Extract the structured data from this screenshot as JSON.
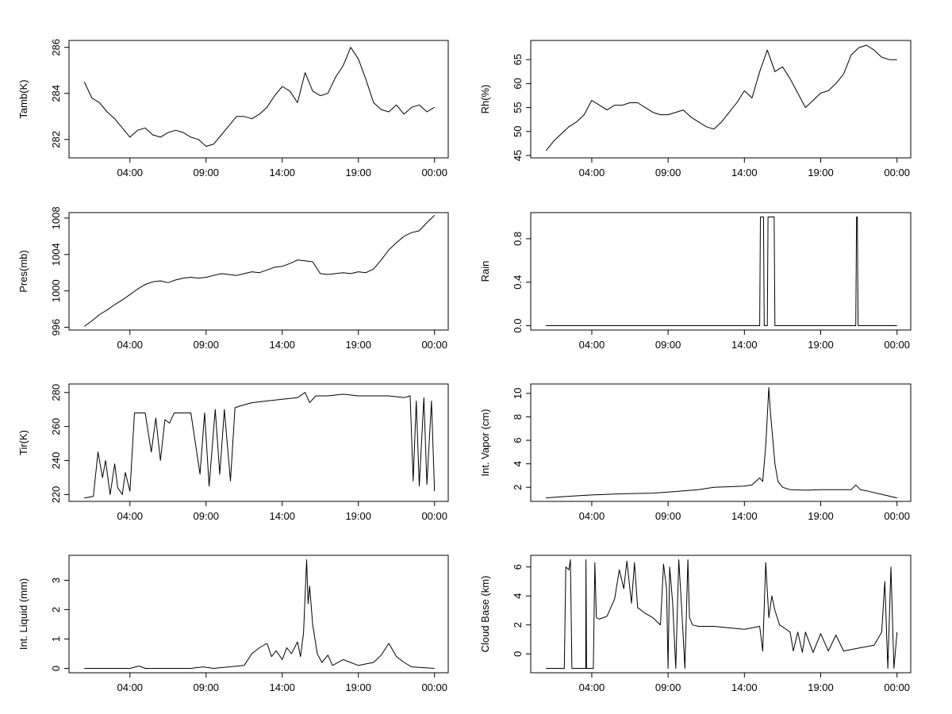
{
  "chart_data": [
    {
      "type": "line",
      "ylabel": "Tamb(K)",
      "x_ticks": [
        "04:00",
        "09:00",
        "14:00",
        "19:00",
        "00:00"
      ],
      "y_ticks": [
        282,
        284,
        286
      ],
      "ylim": [
        281.2,
        286.3
      ],
      "line_color": "#000000",
      "series": [
        {
          "x": [
            1,
            1.5,
            2,
            2.5,
            3,
            3.5,
            4,
            4.5,
            5,
            5.5,
            6,
            6.5,
            7,
            7.5,
            8,
            8.5,
            9,
            9.5,
            10,
            10.5,
            11,
            11.5,
            12,
            12.5,
            13,
            13.5,
            14,
            14.5,
            15,
            15.5,
            16,
            16.5,
            17,
            17.5,
            18,
            18.5,
            19,
            19.5,
            20,
            20.5,
            21,
            21.5,
            22,
            22.5,
            23,
            23.5,
            24
          ],
          "values": [
            284.5,
            283.8,
            283.6,
            283.2,
            282.9,
            282.5,
            282.1,
            282.4,
            282.5,
            282.2,
            282.1,
            282.3,
            282.4,
            282.3,
            282.1,
            282.0,
            281.7,
            281.8,
            282.2,
            282.6,
            283.0,
            283.0,
            282.9,
            283.1,
            283.4,
            283.9,
            284.3,
            284.1,
            283.6,
            284.9,
            284.1,
            283.9,
            284.0,
            284.7,
            285.2,
            286.0,
            285.5,
            284.6,
            283.6,
            283.3,
            283.2,
            283.5,
            283.1,
            283.4,
            283.5,
            283.2,
            283.4
          ]
        }
      ]
    },
    {
      "type": "line",
      "ylabel": "Rh(%)",
      "x_ticks": [
        "04:00",
        "09:00",
        "14:00",
        "19:00",
        "00:00"
      ],
      "y_ticks": [
        45,
        50,
        55,
        60,
        65
      ],
      "ylim": [
        44.5,
        69
      ],
      "line_color": "#000000",
      "series": [
        {
          "x": [
            1,
            1.5,
            2,
            2.5,
            3,
            3.5,
            4,
            4.5,
            5,
            5.5,
            6,
            6.5,
            7,
            7.5,
            8,
            8.5,
            9,
            9.5,
            10,
            10.5,
            11,
            11.5,
            12,
            12.5,
            13,
            13.5,
            14,
            14.5,
            15,
            15.5,
            16,
            16.5,
            17,
            17.5,
            18,
            18.5,
            19,
            19.5,
            20,
            20.5,
            21,
            21.5,
            22,
            22.5,
            23,
            23.5,
            24
          ],
          "values": [
            46,
            48,
            49.5,
            51,
            52,
            53.5,
            56.5,
            55.5,
            54.5,
            55.5,
            55.5,
            56,
            56,
            55,
            54,
            53.5,
            53.5,
            54,
            54.5,
            53,
            52,
            51,
            50.5,
            52,
            54,
            56,
            58.5,
            57,
            62.5,
            67,
            62.5,
            63.5,
            61,
            58,
            55,
            56.5,
            58,
            58.5,
            60,
            62,
            66,
            67.5,
            68,
            67,
            65.5,
            65,
            65
          ]
        }
      ]
    },
    {
      "type": "line",
      "ylabel": "Pres(mb)",
      "x_ticks": [
        "04:00",
        "09:00",
        "14:00",
        "19:00",
        "00:00"
      ],
      "y_ticks": [
        996,
        1000,
        1004,
        1008
      ],
      "ylim": [
        995.7,
        1008.6
      ],
      "line_color": "#000000",
      "series": [
        {
          "x": [
            1,
            1.5,
            2,
            2.5,
            3,
            3.5,
            4,
            4.5,
            5,
            5.5,
            6,
            6.5,
            7,
            7.5,
            8,
            8.5,
            9,
            9.5,
            10,
            10.5,
            11,
            11.5,
            12,
            12.5,
            13,
            13.5,
            14,
            14.5,
            15,
            15.5,
            16,
            16.5,
            17,
            17.5,
            18,
            18.5,
            19,
            19.5,
            20,
            20.5,
            21,
            21.5,
            22,
            22.5,
            23,
            23.5,
            24
          ],
          "values": [
            996.1,
            996.7,
            997.4,
            997.9,
            998.5,
            999.0,
            999.6,
            1000.2,
            1000.7,
            1001.0,
            1001.1,
            1000.9,
            1001.2,
            1001.4,
            1001.5,
            1001.4,
            1001.5,
            1001.7,
            1001.9,
            1001.8,
            1001.7,
            1001.9,
            1002.1,
            1002.0,
            1002.3,
            1002.6,
            1002.7,
            1003.0,
            1003.4,
            1003.3,
            1003.2,
            1001.9,
            1001.8,
            1001.9,
            1002.0,
            1001.9,
            1002.1,
            1002.0,
            1002.4,
            1003.4,
            1004.5,
            1005.3,
            1006.0,
            1006.4,
            1006.6,
            1007.5,
            1008.3
          ]
        }
      ]
    },
    {
      "type": "line",
      "ylabel": "Rain",
      "x_ticks": [
        "04:00",
        "09:00",
        "14:00",
        "19:00",
        "00:00"
      ],
      "y_ticks": [
        "0.0",
        "0.4",
        "0.8"
      ],
      "ylim": [
        -0.04,
        1.04
      ],
      "line_color": "#000000",
      "series": [
        {
          "x": [
            1,
            15.0,
            15.05,
            15.25,
            15.3,
            15.5,
            15.55,
            15.95,
            16.0,
            21.3,
            21.35,
            21.4,
            21.45,
            24
          ],
          "values": [
            0,
            0,
            1,
            1,
            0,
            0,
            1,
            1,
            0,
            0,
            1,
            1,
            0,
            0
          ]
        }
      ]
    },
    {
      "type": "line",
      "ylabel": "Tir(K)",
      "x_ticks": [
        "04:00",
        "09:00",
        "14:00",
        "19:00",
        "00:00"
      ],
      "y_ticks": [
        220,
        240,
        260,
        280
      ],
      "ylim": [
        216,
        285
      ],
      "line_color": "#000000",
      "series": [
        {
          "x": [
            1,
            1.6,
            1.9,
            2.2,
            2.4,
            2.7,
            3.0,
            3.2,
            3.5,
            3.7,
            4.0,
            4.3,
            4.6,
            5.0,
            5.4,
            5.7,
            6.0,
            6.3,
            6.6,
            6.9,
            7.2,
            8.0,
            8.6,
            8.9,
            9.2,
            9.6,
            9.9,
            10.2,
            10.6,
            10.9,
            11.2,
            12.0,
            13.0,
            14.0,
            15.0,
            15.5,
            15.8,
            16.2,
            17.0,
            18.0,
            19.0,
            20.0,
            21.0,
            22.0,
            22.4,
            22.6,
            22.8,
            23.0,
            23.3,
            23.5,
            23.8,
            24
          ],
          "values": [
            218,
            219,
            245,
            230,
            240,
            220,
            238,
            224,
            220,
            233,
            222,
            268,
            268,
            268,
            245,
            265,
            240,
            264,
            262,
            268,
            268,
            268,
            232,
            268,
            225,
            270,
            232,
            270,
            228,
            271,
            272,
            274,
            275,
            276,
            277,
            280,
            274,
            278,
            278,
            279,
            278,
            278,
            278,
            277,
            278,
            228,
            275,
            225,
            277,
            226,
            275,
            222
          ]
        }
      ]
    },
    {
      "type": "line",
      "ylabel": "Int. Vapor (cm)",
      "x_ticks": [
        "04:00",
        "09:00",
        "14:00",
        "19:00",
        "00:00"
      ],
      "y_ticks": [
        2,
        4,
        6,
        8,
        10
      ],
      "ylim": [
        0.8,
        10.8
      ],
      "line_color": "#000000",
      "series": [
        {
          "x": [
            1,
            2,
            4,
            6,
            8,
            9,
            10,
            11,
            12,
            13,
            14,
            14.5,
            15.0,
            15.2,
            15.4,
            15.6,
            15.7,
            15.8,
            16.0,
            16.2,
            16.5,
            17.0,
            18.0,
            19.0,
            20.0,
            21.0,
            21.3,
            21.6,
            22.0,
            23.0,
            24.0
          ],
          "values": [
            1.1,
            1.2,
            1.35,
            1.45,
            1.5,
            1.6,
            1.7,
            1.8,
            2.0,
            2.05,
            2.1,
            2.2,
            2.8,
            2.5,
            5.5,
            10.5,
            8.5,
            7.0,
            4.0,
            2.5,
            2.0,
            1.8,
            1.75,
            1.8,
            1.8,
            1.8,
            2.2,
            1.8,
            1.7,
            1.4,
            1.1
          ]
        }
      ]
    },
    {
      "type": "line",
      "ylabel": "Int. Liquid (mm)",
      "x_ticks": [
        "04:00",
        "09:00",
        "14:00",
        "19:00",
        "00:00"
      ],
      "y_ticks": [
        0,
        1,
        2,
        3
      ],
      "ylim": [
        -0.15,
        3.85
      ],
      "line_color": "#000000",
      "series": [
        {
          "x": [
            1,
            4,
            4.6,
            5,
            8,
            8.8,
            9.5,
            10.5,
            11.5,
            12.0,
            12.5,
            13.0,
            13.3,
            13.6,
            14.0,
            14.3,
            14.6,
            15.0,
            15.2,
            15.4,
            15.6,
            15.7,
            15.8,
            16.0,
            16.3,
            16.6,
            17.0,
            17.3,
            18.0,
            19.0,
            20.0,
            20.5,
            21.0,
            21.5,
            22.0,
            22.5,
            24
          ],
          "values": [
            0,
            0,
            0.08,
            0,
            0,
            0.05,
            0,
            0.05,
            0.1,
            0.5,
            0.7,
            0.85,
            0.4,
            0.6,
            0.3,
            0.7,
            0.5,
            0.9,
            0.4,
            1.2,
            3.7,
            2.2,
            2.8,
            1.5,
            0.5,
            0.2,
            0.45,
            0.1,
            0.3,
            0.1,
            0.2,
            0.45,
            0.85,
            0.4,
            0.2,
            0.05,
            0
          ]
        }
      ]
    },
    {
      "type": "line",
      "ylabel": "Cloud Base (km)",
      "x_ticks": [
        "04:00",
        "09:00",
        "14:00",
        "19:00",
        "00:00"
      ],
      "y_ticks": [
        0,
        2,
        4,
        6
      ],
      "ylim": [
        -1.3,
        6.8
      ],
      "line_color": "#000000",
      "series": [
        {
          "x": [
            1,
            2.2,
            2.3,
            2.5,
            2.6,
            2.7,
            3.6,
            3.62,
            3.66,
            4.1,
            4.2,
            4.3,
            4.5,
            5.0,
            5.5,
            5.8,
            6.1,
            6.3,
            6.6,
            6.8,
            7.0,
            7.5,
            8.0,
            8.5,
            8.7,
            8.9,
            9.0,
            9.1,
            9.3,
            9.5,
            9.7,
            9.9,
            10.1,
            10.3,
            10.4,
            10.6,
            11.0,
            12.0,
            13.0,
            14.0,
            14.5,
            15.0,
            15.2,
            15.4,
            15.6,
            15.8,
            16.0,
            16.3,
            16.6,
            17.0,
            17.2,
            17.5,
            17.8,
            18.0,
            18.5,
            19.0,
            19.5,
            20.0,
            20.5,
            21.0,
            21.5,
            22.0,
            22.5,
            23.0,
            23.2,
            23.4,
            23.6,
            23.8,
            24
          ],
          "values": [
            -1,
            -1,
            6,
            5.8,
            6.5,
            -1,
            -1,
            6.5,
            -1,
            -1,
            6.3,
            2.5,
            2.4,
            2.6,
            3.8,
            5.8,
            4.5,
            6.4,
            3.5,
            6.3,
            3.2,
            2.8,
            2.5,
            2.0,
            6.2,
            4.5,
            -1,
            6.0,
            3.5,
            -1,
            6.5,
            3.0,
            -1,
            6.5,
            2.5,
            2.0,
            1.9,
            1.9,
            1.8,
            1.7,
            1.8,
            1.9,
            0.2,
            6.3,
            2.5,
            4.0,
            3.0,
            2.0,
            1.8,
            1.5,
            0.2,
            1.5,
            0.1,
            1.5,
            0.1,
            1.4,
            0.2,
            1.3,
            0.2,
            0.3,
            0.4,
            0.5,
            0.6,
            1.5,
            5.0,
            -1,
            6.0,
            -1,
            1.5
          ]
        }
      ]
    }
  ]
}
